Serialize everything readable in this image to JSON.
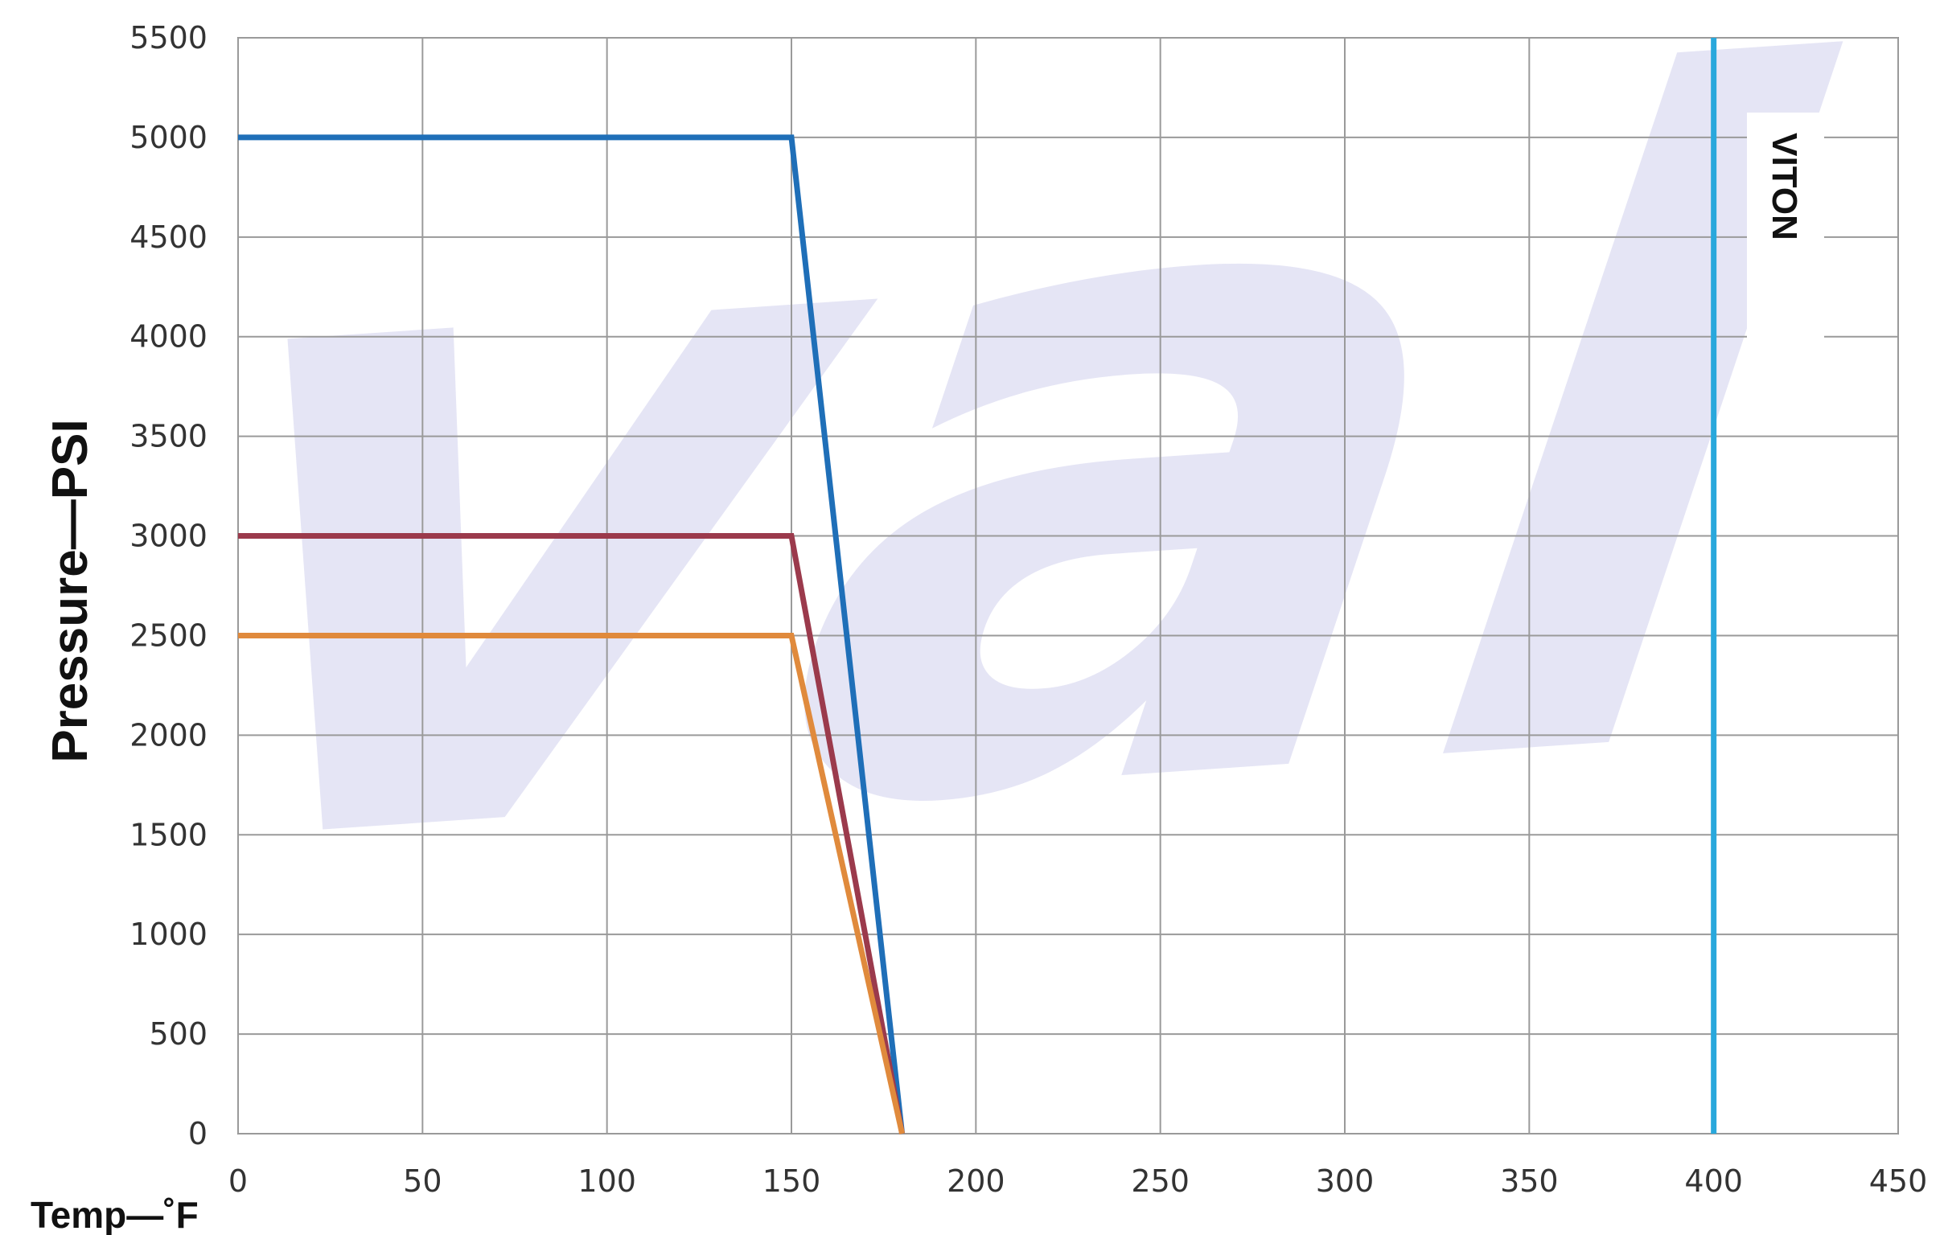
{
  "chart_data": {
    "type": "line",
    "title": "",
    "xlabel": "Temp—˚F",
    "ylabel": "Pressure—PSI",
    "xlim": [
      0,
      450
    ],
    "ylim": [
      0,
      5500
    ],
    "x_ticks": [
      0,
      50,
      100,
      150,
      200,
      250,
      300,
      350,
      400,
      450
    ],
    "y_ticks": [
      0,
      500,
      1000,
      1500,
      2000,
      2500,
      3000,
      3500,
      4000,
      4500,
      5000,
      5500
    ],
    "grid": true,
    "legend": "none",
    "series": [
      {
        "color": "#1f6fb8",
        "x": [
          0,
          150,
          180
        ],
        "y": [
          5000,
          5000,
          0
        ]
      },
      {
        "color": "#9b3a4c",
        "x": [
          0,
          150,
          180
        ],
        "y": [
          3000,
          3000,
          0
        ]
      },
      {
        "color": "#e08a3c",
        "x": [
          0,
          150,
          180
        ],
        "y": [
          2500,
          2500,
          0
        ]
      }
    ],
    "annotations": [
      {
        "type": "vline",
        "x": 400,
        "color": "#29a8dc",
        "label": "VITON"
      }
    ],
    "watermark": {
      "text": "val",
      "color": "#dcdcf2"
    }
  }
}
